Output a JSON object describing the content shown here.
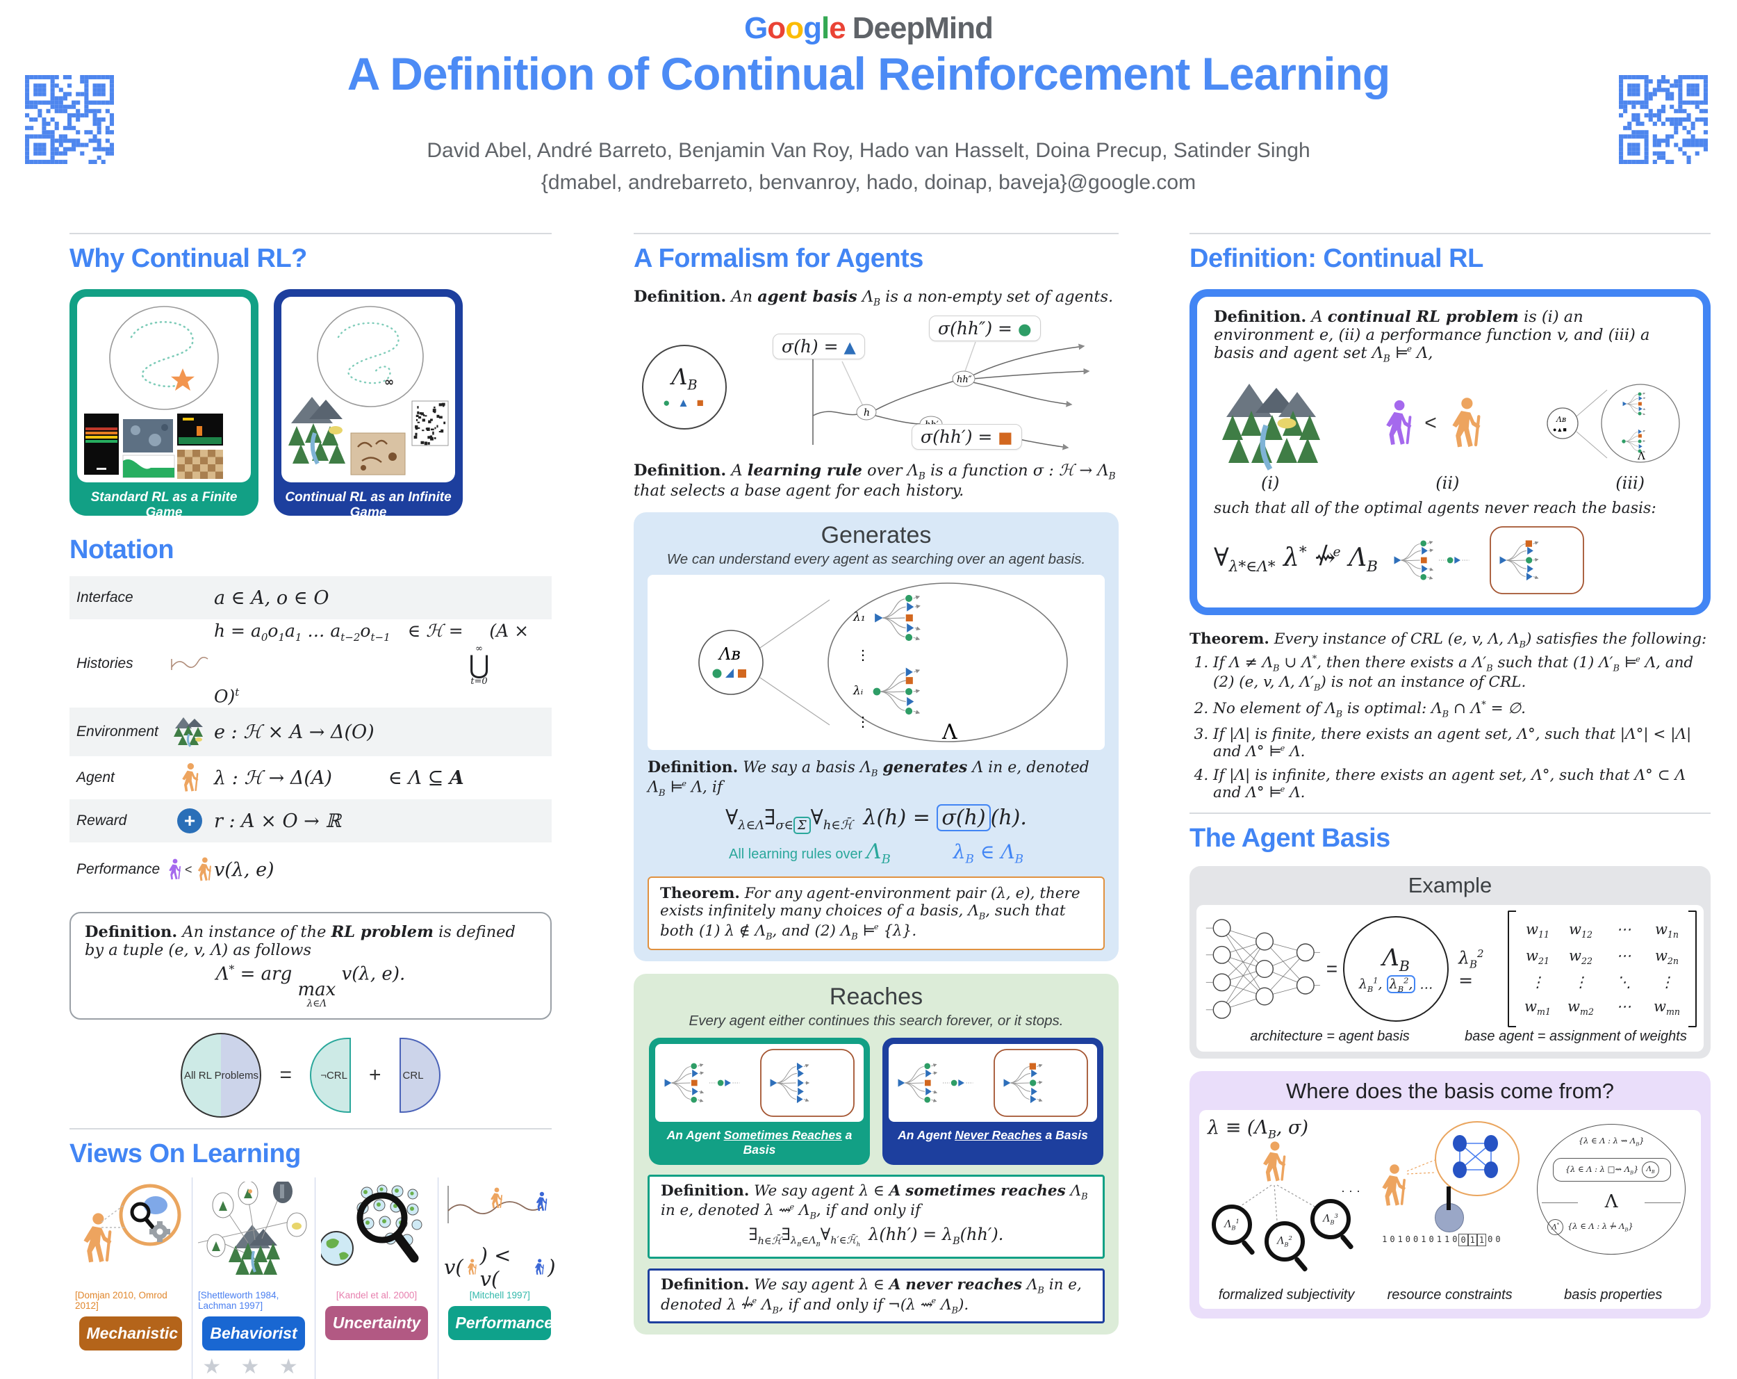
{
  "palette": {
    "google_blue": "#4285f4",
    "title_blue": "#4c8bf5",
    "teal": "#12a085",
    "navy": "#1d3f9e",
    "generates_bg": "#d9e8f7",
    "reaches_bg": "#dcecd8",
    "theorem_border": "#e0913f",
    "purple_bg": "#eadefa",
    "shape_green": "#2e9d66",
    "shape_blue": "#2e6fba",
    "shape_orange": "#d2671f",
    "qr_blue": "#4e86ee"
  },
  "header": {
    "logo_letters": [
      {
        "ch": "G",
        "c": "#4285F4"
      },
      {
        "ch": "o",
        "c": "#EA4335"
      },
      {
        "ch": "o",
        "c": "#FBBC05"
      },
      {
        "ch": "g",
        "c": "#4285F4"
      },
      {
        "ch": "l",
        "c": "#34A853"
      },
      {
        "ch": "e",
        "c": "#EA4335"
      }
    ],
    "logo_suffix": "DeepMind",
    "title": "A Definition of Continual Reinforcement Learning",
    "authors": "David Abel, André Barreto, Benjamin Van Roy, Hado van Hasselt, Doina Precup, Satinder Singh",
    "emails": "{dmabel, andrebarreto, benvanroy, hado, doinap, baveja}@google.com"
  },
  "left": {
    "why_heading": "Why Continual RL?",
    "card_finite": "Standard RL as a Finite Game",
    "card_infinite": "Continual RL as an Infinite Game",
    "notation_heading": "Notation",
    "rows": [
      {
        "label": "Interface",
        "formula": "a ∈ A, o ∈ O"
      },
      {
        "label": "Histories",
        "formula": "h = a<sub>0</sub>o<sub>1</sub>a<sub>1</sub> … a<sub>t−2</sub>o<sub>t−1</sub>&ensp;&ensp;∈ ℋ = <span class='stk'><span class='lim'>∞</span><span class='op'>⋃</span><span class='lim'>t=0</span></span>(A × O)<sup>t</sup>"
      },
      {
        "label": "Environment",
        "formula": "e : ℋ × A → Δ(O)"
      },
      {
        "label": "Agent",
        "formula": "λ : ℋ → Δ(A)&emsp;&emsp;&emsp;∈ Λ ⊆ <span class='bb'>A</span>"
      },
      {
        "label": "Reward",
        "formula": "r : A × O → ℝ"
      },
      {
        "label": "Performance",
        "formula": "v(λ, e)"
      }
    ],
    "rl_def": "<b class='up'>Definition.</b> An instance of the <b>RL problem</b> is defined by a tuple (e, v, Λ) as follows",
    "rl_formula": "Λ<sup>*</sup> = arg <span class='stk'><span class='op2'>max</span><span class='lim'>λ∈Λ</span></span> v(λ, e).",
    "venn": {
      "all": "All RL Problems",
      "eq": "=",
      "not_crl": "¬CRL",
      "plus": "+",
      "crl": "CRL"
    },
    "views_heading": "Views On Learning",
    "performance_formula": {
      "pre": "v(",
      "mid": ") < v(",
      "post": ")"
    },
    "panels": [
      {
        "citation": "[Domjan 2010, Omrod 2012]",
        "citation_style": "color:#e0862c",
        "label": "Mechanistic",
        "button_style": "background:#b4641a"
      },
      {
        "citation": "[Shettleworth 1984, Lachman 1997]",
        "citation_style": "color:#4a7ff0",
        "label": "Behaviorist",
        "button_style": "background:#1967d2",
        "stars": "★ ★ ★"
      },
      {
        "citation": "[Kandel et al. 2000]",
        "citation_style": "color:#e77fae",
        "label": "Uncertainty",
        "button_style": "background:#b25983"
      },
      {
        "citation": "[Mitchell 1997]",
        "citation_style": "color:#30b8aa",
        "label": "Performance",
        "button_style": "background:#0fa28b"
      }
    ]
  },
  "middle": {
    "heading": "A Formalism for Agents",
    "def_basis": "<b class='up'>Definition.</b> An <b>agent basis</b> Λ<sub>B</sub> is a non-empty set of agents.",
    "basis_circle": {
      "label": "Λ<sub>B</sub>",
      "shapes": "<span class='cir'>●</span> <span class='tri'>▲</span> <span class='sq'>■</span>"
    },
    "callouts": {
      "h": "σ(h) = <span class='tri big'>▲</span>",
      "hh2": "σ(hh″) = <span class='cir big'>●</span>",
      "hh1": "σ(hh′) = <span class='sq big'>■</span>"
    },
    "nodes": {
      "h": "h",
      "hh1": "hh′",
      "hh2": "hh″"
    },
    "def_rule": "<b class='up'>Definition.</b> A <b>learning rule</b> over Λ<sub>B</sub> is a function σ : ℋ → Λ<sub>B</sub> that selects a base agent for each history.",
    "generates": {
      "title": "Generates",
      "subtitle": "We can understand every agent as searching over an agent basis.",
      "lambda1": "λ₁",
      "lambdai": "λᵢ",
      "dots": "⋮",
      "Lambda": "Λ",
      "basis_label": "Λʙ",
      "basis_shapes": "●▲■",
      "definition": "<b class='up'>Definition.</b> We say a basis Λ<sub>B</sub> <b>generates</b> Λ in e, denoted Λ<sub>B</sub> ⊨<sup class='se'>e</sup> Λ, if",
      "formula": "∀<sub>λ∈Λ</sub>∃<sub>σ∈<span class='bxt'>Σ</span></sub>∀<sub>h∈ℋ̄</sub>&ensp;λ(h) = <span class='bxb'>σ(h)</span>(h).",
      "ann_left": "All learning rules over <span class='m asym'>Λ<sub>B</sub></span>",
      "ann_right": "λ<sub>B</sub> ∈ Λ<sub>B</sub>",
      "theorem": "<b class='up'>Theorem.</b> For any agent-environment pair (λ, e), there exists infinitely many choices of a basis, Λ<sub>B</sub>, such that both (1) λ ∉ Λ<sub>B</sub>, and (2) Λ<sub>B</sub> ⊨<sup class='se'>e</sup> {λ}."
    },
    "reaches": {
      "title": "Reaches",
      "subtitle": "Every agent either continues this search forever, or it stops.",
      "card_sometimes": "An Agent <u>Sometimes Reaches</u> a Basis",
      "card_never": "An Agent <u>Never Reaches</u> a Basis",
      "def_sometimes": "<b class='up'>Definition.</b> We say agent λ ∈ <span class='bb'>A</span> <b>sometimes reaches</b> Λ<sub>B</sub> in e, denoted λ ⇝<sup class='se'>e</sup> Λ<sub>B</sub>, if and only if",
      "formula_sometimes": "∃<sub>h∈ℋ̄</sub>∃<sub>λ<sub>B</sub>∈Λ<sub>B</sub></sub>∀<sub>h′∈ℋ̄<sub>h</sub></sub>&ensp;λ(hh′) = λ<sub>B</sub>(hh′).",
      "def_never": "<b class='up'>Definition.</b> We say agent λ ∈ <span class='bb'>A</span> <b>never reaches</b> Λ<sub>B</sub> in e, denoted λ <span class='nsq'>⇝</span><sup class='se'>e</sup> Λ<sub>B</sub>, if and only if ¬(λ ⇝<sup class='se'>e</sup> Λ<sub>B</sub>)."
    }
  },
  "right": {
    "heading": "Definition: Continual RL",
    "definition": "<b class='up'>Definition.</b> A <b>continual RL problem</b> is (i) an environment e, (ii) a performance function v, and (iii) a basis and agent set Λ<sub>B</sub> ⊨<sup class='se'>e</sup> Λ,",
    "labels": {
      "i": "(i)",
      "ii": "(ii)",
      "iii": "(iii)"
    },
    "such_that": "such that all of the optimal agents never reach the basis:",
    "formula": "∀<sub>λ*∈Λ*</sub> λ<sup>*</sup> <span class='nsq'>⇝</span><sup class='se'>e</sup> Λ<sub>B</sub>",
    "theorem_intro": "<b class='up'>Theorem.</b> Every instance of CRL (e, v, Λ, Λ<sub>B</sub>) satisfies the following:",
    "theorem_items": [
      "If Λ ≠ Λ<sub>B</sub> ∪ Λ<sup>*</sup>, then there exists a Λ′<sub>B</sub> such that (1) Λ′<sub>B</sub> ⊨<sup class='se'>e</sup> Λ, and (2) (e, v, Λ, Λ′<sub>B</sub>) is not an instance of CRL.",
      "No element of Λ<sub>B</sub> is optimal: Λ<sub>B</sub> ∩ Λ<sup>*</sup> = ∅.",
      "If |Λ| is finite, there exists an agent set, Λ°, such that |Λ°| &lt; |Λ| and Λ° ⊨<sup class='se'>e</sup> Λ.",
      "If |Λ| is infinite, there exists an agent set, Λ°, such that Λ° ⊂ Λ and Λ° ⊨<sup class='se'>e</sup> Λ."
    ],
    "basis_heading": "The Agent Basis",
    "example": {
      "title": "Example",
      "eq": "=",
      "circle_top": "Λ<sub>B</sub>",
      "circle_items_pre": "λ<sub>B</sub><sup>1</sup>,",
      "circle_item_boxed": "λ<sub>B</sub><sup>2</sup>,",
      "circle_items_post": "…",
      "matrix_lhs": "λ<sub>B</sub><sup>2</sup> =",
      "matrix": [
        [
          "w<sub>11</sub>",
          "w<sub>12</sub>",
          "⋯",
          "w<sub>1n</sub>"
        ],
        [
          "w<sub>21</sub>",
          "w<sub>22</sub>",
          "⋯",
          "w<sub>2n</sub>"
        ],
        [
          "⋮",
          "⋮",
          "⋱",
          "⋮"
        ],
        [
          "w<sub>m1</sub>",
          "w<sub>m2</sub>",
          "⋯",
          "w<sub>mn</sub>"
        ]
      ],
      "caption_left": "architecture = agent basis",
      "caption_right": "base agent = assignment of weights"
    },
    "basis_from": {
      "title": "Where does the basis come from?",
      "formula": "λ ≡ (Λ<sub>B</sub>, σ)",
      "mag_labels": [
        "Λ<sub>B</sub><sup>1</sup>",
        "Λ<sub>B</sub><sup>2</sup>",
        "Λ<sub>B</sub><sup>3</sup>"
      ],
      "dots": "· · ·",
      "tape": [
        "1",
        "0",
        "1",
        "0",
        "0",
        "1",
        "0",
        "1",
        "1",
        "0",
        "0",
        "1",
        "1",
        "0",
        "0"
      ],
      "tape_boxed_from": 10,
      "tape_boxed_to": 12,
      "sets": {
        "top": "{λ ∈ Λ : λ ⇝ Λ<sub>B</sub>}",
        "mid": "{λ ∈ Λ : λ □⇝ Λ<sub>B</sub>}",
        "mid_circle": "Λ<sub>B</sub>",
        "Lambda": "Λ",
        "bottom_circle": "Λ<sup>*</sup>",
        "bottom": "{λ ∈ Λ : λ <span class='nsq'>⇝</span> Λ<sub>B</sub>}"
      },
      "captions": [
        "formalized subjectivity",
        "resource constraints",
        "basis properties"
      ]
    }
  }
}
